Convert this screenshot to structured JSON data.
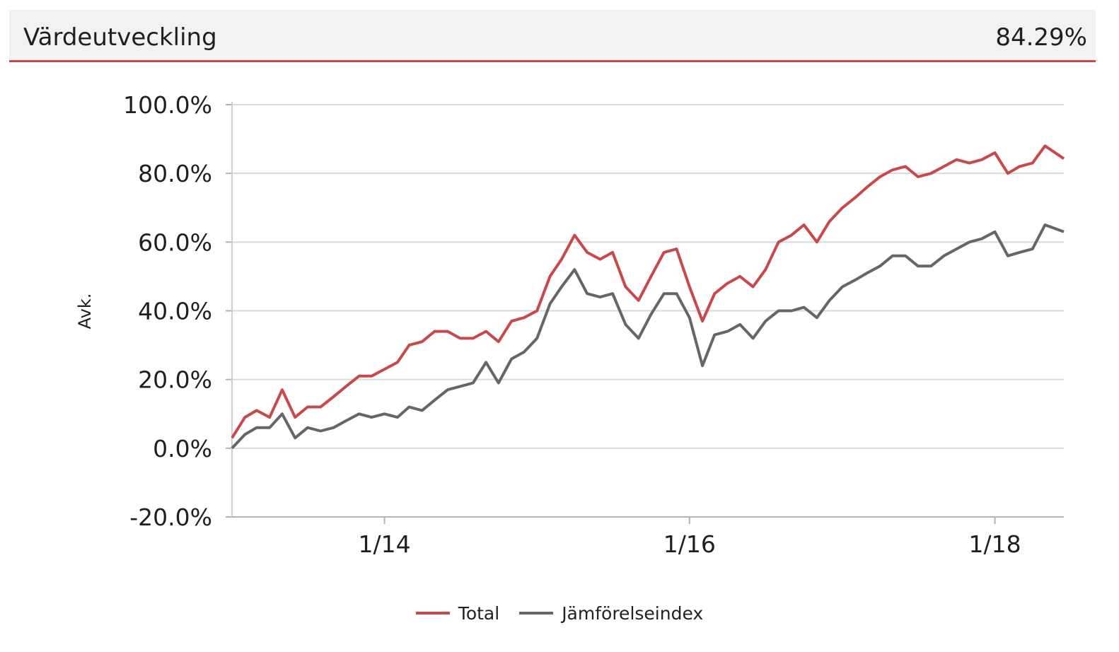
{
  "header": {
    "title": "Värdeutveckling",
    "value": "84.29%"
  },
  "chart_data": {
    "type": "line",
    "title": "",
    "xlabel": "",
    "ylabel": "Avk.",
    "ylim": [
      -20,
      100
    ],
    "yticks": [
      {
        "value": -20,
        "label": "-20.0%"
      },
      {
        "value": 0,
        "label": "0.0%"
      },
      {
        "value": 20,
        "label": "20.0%"
      },
      {
        "value": 40,
        "label": "40.0%"
      },
      {
        "value": 60,
        "label": "60.0%"
      },
      {
        "value": 80,
        "label": "80.0%"
      },
      {
        "value": 100,
        "label": "100.0%"
      }
    ],
    "xlim": [
      "2013-01-01",
      "2018-06-15"
    ],
    "xticks": [
      {
        "date": "2014-01-01",
        "label": "1/14"
      },
      {
        "date": "2016-01-01",
        "label": "1/16"
      },
      {
        "date": "2018-01-01",
        "label": "1/18"
      }
    ],
    "grid": true,
    "legend_position": "bottom",
    "series": [
      {
        "name": "Total",
        "color": "#c8494a",
        "points": [
          [
            "2013-01-01",
            3
          ],
          [
            "2013-02-01",
            9
          ],
          [
            "2013-03-01",
            11
          ],
          [
            "2013-04-01",
            9
          ],
          [
            "2013-05-01",
            17
          ],
          [
            "2013-06-01",
            9
          ],
          [
            "2013-07-01",
            12
          ],
          [
            "2013-08-01",
            12
          ],
          [
            "2013-09-01",
            15
          ],
          [
            "2013-10-01",
            18
          ],
          [
            "2013-11-01",
            21
          ],
          [
            "2013-12-01",
            21
          ],
          [
            "2014-01-01",
            23
          ],
          [
            "2014-02-01",
            25
          ],
          [
            "2014-03-01",
            30
          ],
          [
            "2014-04-01",
            31
          ],
          [
            "2014-05-01",
            34
          ],
          [
            "2014-06-01",
            34
          ],
          [
            "2014-07-01",
            32
          ],
          [
            "2014-08-01",
            32
          ],
          [
            "2014-09-01",
            34
          ],
          [
            "2014-10-01",
            31
          ],
          [
            "2014-11-01",
            37
          ],
          [
            "2014-12-01",
            38
          ],
          [
            "2015-01-01",
            40
          ],
          [
            "2015-02-01",
            50
          ],
          [
            "2015-03-01",
            55
          ],
          [
            "2015-04-01",
            62
          ],
          [
            "2015-05-01",
            57
          ],
          [
            "2015-06-01",
            55
          ],
          [
            "2015-07-01",
            57
          ],
          [
            "2015-08-01",
            47
          ],
          [
            "2015-09-01",
            43
          ],
          [
            "2015-10-01",
            50
          ],
          [
            "2015-11-01",
            57
          ],
          [
            "2015-12-01",
            58
          ],
          [
            "2016-01-01",
            47
          ],
          [
            "2016-02-01",
            37
          ],
          [
            "2016-03-01",
            45
          ],
          [
            "2016-04-01",
            48
          ],
          [
            "2016-05-01",
            50
          ],
          [
            "2016-06-01",
            47
          ],
          [
            "2016-07-01",
            52
          ],
          [
            "2016-08-01",
            60
          ],
          [
            "2016-09-01",
            62
          ],
          [
            "2016-10-01",
            65
          ],
          [
            "2016-11-01",
            60
          ],
          [
            "2016-12-01",
            66
          ],
          [
            "2017-01-01",
            70
          ],
          [
            "2017-02-01",
            73
          ],
          [
            "2017-03-01",
            76
          ],
          [
            "2017-04-01",
            79
          ],
          [
            "2017-05-01",
            81
          ],
          [
            "2017-06-01",
            82
          ],
          [
            "2017-07-01",
            79
          ],
          [
            "2017-08-01",
            80
          ],
          [
            "2017-09-01",
            82
          ],
          [
            "2017-10-01",
            84
          ],
          [
            "2017-11-01",
            83
          ],
          [
            "2017-12-01",
            84
          ],
          [
            "2018-01-01",
            86
          ],
          [
            "2018-02-01",
            80
          ],
          [
            "2018-03-01",
            82
          ],
          [
            "2018-04-01",
            83
          ],
          [
            "2018-05-01",
            88
          ],
          [
            "2018-06-15",
            84.29
          ]
        ]
      },
      {
        "name": "Jämförelseindex",
        "color": "#666666",
        "points": [
          [
            "2013-01-01",
            0
          ],
          [
            "2013-02-01",
            4
          ],
          [
            "2013-03-01",
            6
          ],
          [
            "2013-04-01",
            6
          ],
          [
            "2013-05-01",
            10
          ],
          [
            "2013-06-01",
            3
          ],
          [
            "2013-07-01",
            6
          ],
          [
            "2013-08-01",
            5
          ],
          [
            "2013-09-01",
            6
          ],
          [
            "2013-10-01",
            8
          ],
          [
            "2013-11-01",
            10
          ],
          [
            "2013-12-01",
            9
          ],
          [
            "2014-01-01",
            10
          ],
          [
            "2014-02-01",
            9
          ],
          [
            "2014-03-01",
            12
          ],
          [
            "2014-04-01",
            11
          ],
          [
            "2014-05-01",
            14
          ],
          [
            "2014-06-01",
            17
          ],
          [
            "2014-07-01",
            18
          ],
          [
            "2014-08-01",
            19
          ],
          [
            "2014-09-01",
            25
          ],
          [
            "2014-10-01",
            19
          ],
          [
            "2014-11-01",
            26
          ],
          [
            "2014-12-01",
            28
          ],
          [
            "2015-01-01",
            32
          ],
          [
            "2015-02-01",
            42
          ],
          [
            "2015-03-01",
            47
          ],
          [
            "2015-04-01",
            52
          ],
          [
            "2015-05-01",
            45
          ],
          [
            "2015-06-01",
            44
          ],
          [
            "2015-07-01",
            45
          ],
          [
            "2015-08-01",
            36
          ],
          [
            "2015-09-01",
            32
          ],
          [
            "2015-10-01",
            39
          ],
          [
            "2015-11-01",
            45
          ],
          [
            "2015-12-01",
            45
          ],
          [
            "2016-01-01",
            38
          ],
          [
            "2016-02-01",
            24
          ],
          [
            "2016-03-01",
            33
          ],
          [
            "2016-04-01",
            34
          ],
          [
            "2016-05-01",
            36
          ],
          [
            "2016-06-01",
            32
          ],
          [
            "2016-07-01",
            37
          ],
          [
            "2016-08-01",
            40
          ],
          [
            "2016-09-01",
            40
          ],
          [
            "2016-10-01",
            41
          ],
          [
            "2016-11-01",
            38
          ],
          [
            "2016-12-01",
            43
          ],
          [
            "2017-01-01",
            47
          ],
          [
            "2017-02-01",
            49
          ],
          [
            "2017-03-01",
            51
          ],
          [
            "2017-04-01",
            53
          ],
          [
            "2017-05-01",
            56
          ],
          [
            "2017-06-01",
            56
          ],
          [
            "2017-07-01",
            53
          ],
          [
            "2017-08-01",
            53
          ],
          [
            "2017-09-01",
            56
          ],
          [
            "2017-10-01",
            58
          ],
          [
            "2017-11-01",
            60
          ],
          [
            "2017-12-01",
            61
          ],
          [
            "2018-01-01",
            63
          ],
          [
            "2018-02-01",
            56
          ],
          [
            "2018-03-01",
            57
          ],
          [
            "2018-04-01",
            58
          ],
          [
            "2018-05-01",
            65
          ],
          [
            "2018-06-15",
            63
          ]
        ]
      }
    ]
  }
}
